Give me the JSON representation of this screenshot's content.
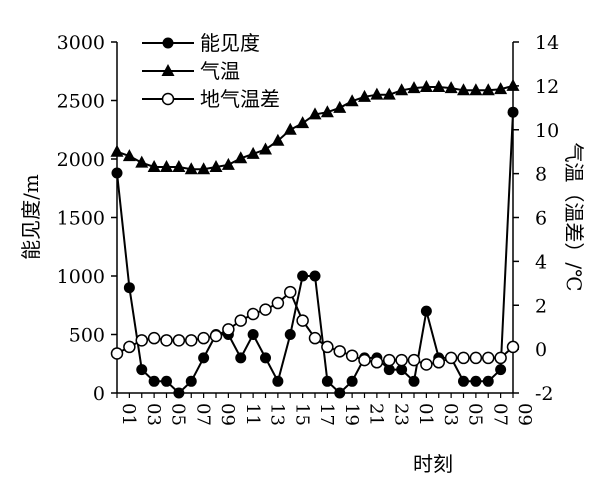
{
  "chart_data": {
    "type": "line",
    "xlabel": "时刻",
    "ylabel_left": "能见度/m",
    "ylabel_right": "气温（温差）/℃",
    "ylim_left": [
      0,
      3000
    ],
    "ylim_right": [
      -2,
      14
    ],
    "yticks_left": [
      0,
      500,
      1000,
      1500,
      2000,
      2500,
      3000
    ],
    "yticks_right": [
      -2,
      0,
      2,
      4,
      6,
      8,
      10,
      12,
      14
    ],
    "x_tick_labels": [
      "01",
      "03",
      "05",
      "07",
      "09",
      "11",
      "13",
      "15",
      "17",
      "19",
      "21",
      "23",
      "01",
      "03",
      "05",
      "07",
      "09"
    ],
    "x": [
      "01",
      "02",
      "03",
      "04",
      "05",
      "06",
      "07",
      "08",
      "09",
      "10",
      "11",
      "12",
      "13",
      "14",
      "15",
      "16",
      "17",
      "18",
      "19",
      "20",
      "21",
      "22",
      "23",
      "24",
      "01",
      "02",
      "03",
      "04",
      "05",
      "06",
      "07",
      "08",
      "09"
    ],
    "legend_position": "top-left",
    "grid": false,
    "series": [
      {
        "name": "能见度",
        "axis": "left",
        "marker": "filled-circle",
        "values": [
          1880,
          900,
          200,
          100,
          100,
          0,
          100,
          300,
          500,
          500,
          300,
          500,
          300,
          100,
          500,
          1000,
          1000,
          100,
          0,
          100,
          300,
          300,
          200,
          200,
          100,
          700,
          300,
          300,
          100,
          100,
          100,
          200,
          2400
        ]
      },
      {
        "name": "气温",
        "axis": "right",
        "marker": "filled-triangle",
        "values": [
          9.0,
          8.8,
          8.5,
          8.3,
          8.3,
          8.3,
          8.2,
          8.2,
          8.3,
          8.4,
          8.7,
          8.9,
          9.1,
          9.5,
          10.0,
          10.3,
          10.7,
          10.8,
          11.0,
          11.3,
          11.5,
          11.6,
          11.6,
          11.8,
          11.9,
          11.95,
          11.95,
          11.9,
          11.8,
          11.8,
          11.8,
          11.85,
          12.0
        ]
      },
      {
        "name": "地气温差",
        "axis": "right",
        "marker": "open-circle",
        "values": [
          -0.2,
          0.1,
          0.4,
          0.5,
          0.4,
          0.4,
          0.4,
          0.5,
          0.6,
          0.9,
          1.3,
          1.6,
          1.8,
          2.1,
          2.6,
          1.3,
          0.5,
          0.1,
          -0.1,
          -0.3,
          -0.5,
          -0.6,
          -0.5,
          -0.5,
          -0.5,
          -0.7,
          -0.6,
          -0.4,
          -0.4,
          -0.4,
          -0.4,
          -0.4,
          0.1
        ]
      }
    ]
  }
}
